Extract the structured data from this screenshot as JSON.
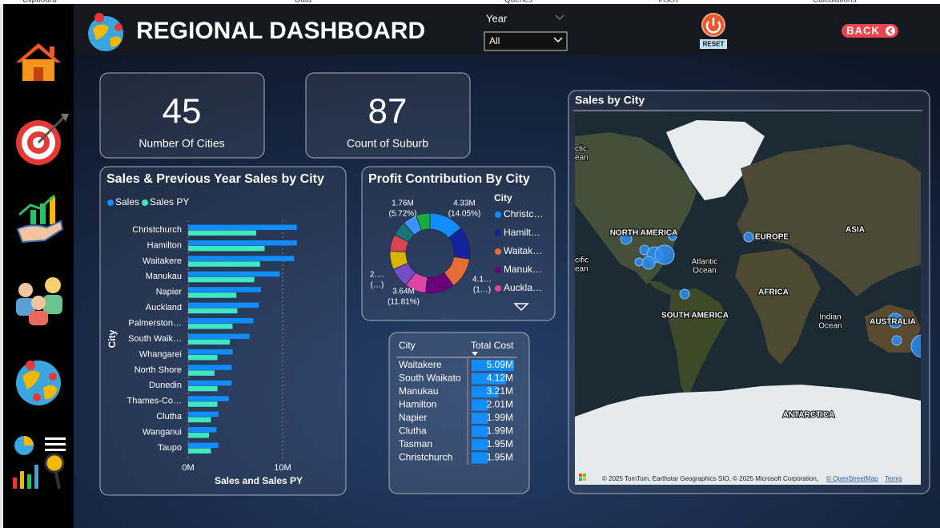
{
  "ribbon": [
    "Clipboard",
    "Data",
    "Queries",
    "Insert",
    "Calculations"
  ],
  "header": {
    "title": "REGIONAL DASHBOARD",
    "year_label": "Year",
    "year_value": "All",
    "reset": "RESET",
    "back": "BACK"
  },
  "cards": [
    {
      "value": 45,
      "label": "Number Of Cities"
    },
    {
      "value": 87,
      "label": "Count of Suburb"
    }
  ],
  "chart_data": [
    {
      "type": "bar",
      "orientation": "horizontal",
      "title": "Sales & Previous Year Sales by City",
      "categories": [
        "Christchurch",
        "Hamilton",
        "Waitakere",
        "Manukau",
        "Napier",
        "Auckland",
        "Palmerston…",
        "South Waik…",
        "Whangarei",
        "North Shore",
        "Dunedin",
        "Thames-Co…",
        "Clutha",
        "Wanganui",
        "Taupo"
      ],
      "series": [
        {
          "name": "Sales",
          "color": "#118DFF",
          "values": [
            11.5,
            11.5,
            11.2,
            9.7,
            7.7,
            7.5,
            6.9,
            6.5,
            4.7,
            4.6,
            4.6,
            4.3,
            3.2,
            3.0,
            3.2
          ]
        },
        {
          "name": "Sales PY",
          "color": "#3EE8C3",
          "values": [
            7.2,
            8.1,
            7.6,
            7.0,
            5.1,
            5.2,
            4.7,
            4.4,
            3.1,
            2.8,
            3.1,
            3.1,
            2.4,
            2.2,
            2.4
          ]
        }
      ],
      "xlim": [
        0,
        15
      ],
      "xticks": [
        {
          "value": 0,
          "label": "0M"
        },
        {
          "value": 10,
          "label": "10M"
        }
      ],
      "x_label": "Sales and Sales PY",
      "y_label": "City",
      "grid": true
    },
    {
      "type": "donut",
      "title": "Profit Contribution By City",
      "values": [
        4.33,
        4.1,
        3.9,
        3.64,
        2.6,
        2.5,
        2.3,
        2.1,
        1.89,
        1.7,
        1.76
      ],
      "colors": [
        "#118DFF",
        "#12239E",
        "#E66C37",
        "#6B007B",
        "#E044A7",
        "#744EC2",
        "#D9B300",
        "#D64550",
        "#197278",
        "#4092FF",
        "#1AAB40"
      ],
      "value_labels": [
        "4.33M",
        "4.1…",
        null,
        "3.64M",
        null,
        null,
        "2.…",
        null,
        null,
        null,
        "1.76M"
      ],
      "percent_labels": [
        "(14.05%)",
        "(1…)",
        null,
        "(11.81%)",
        null,
        null,
        "(…)",
        null,
        null,
        null,
        "(5.72%)"
      ],
      "legend": {
        "title": "City",
        "labels": [
          "Christc…",
          "Hamilt…",
          "Waitak…",
          "Manuk…",
          "Auckla…"
        ]
      }
    }
  ],
  "table": {
    "columns": [
      "City",
      "Total Cost"
    ],
    "rows": [
      [
        "Waitakere",
        "5.09M"
      ],
      [
        "South Waikato",
        "4.12M"
      ],
      [
        "Manukau",
        "3.21M"
      ],
      [
        "Hamilton",
        "2.01M"
      ],
      [
        "Napier",
        "1.99M"
      ],
      [
        "Clutha",
        "1.99M"
      ],
      [
        "Tasman",
        "1.95M"
      ],
      [
        "Christchurch",
        "1.95M"
      ]
    ],
    "bar_values": [
      5.09,
      4.12,
      3.21,
      2.01,
      1.99,
      1.99,
      1.95,
      1.95
    ]
  },
  "map": {
    "title": "Sales by City",
    "labels": [
      "NORTH AMERICA",
      "EUROPE",
      "ASIA",
      "AFRICA",
      "SOUTH AMERICA",
      "AUSTRALIA",
      "ANTARCTICA"
    ],
    "ocean_labels": [
      [
        "ctic",
        "ean"
      ],
      [
        "cific",
        "ean"
      ],
      [
        "Atlantic",
        "Ocean"
      ],
      [
        "Indian",
        "Ocean"
      ]
    ],
    "attribution": "© 2025 TomTom, Earthstar Geographics SIO, © 2025 Microsoft Corporation,",
    "links": [
      "© OpenStreetMap",
      "Terms"
    ]
  }
}
